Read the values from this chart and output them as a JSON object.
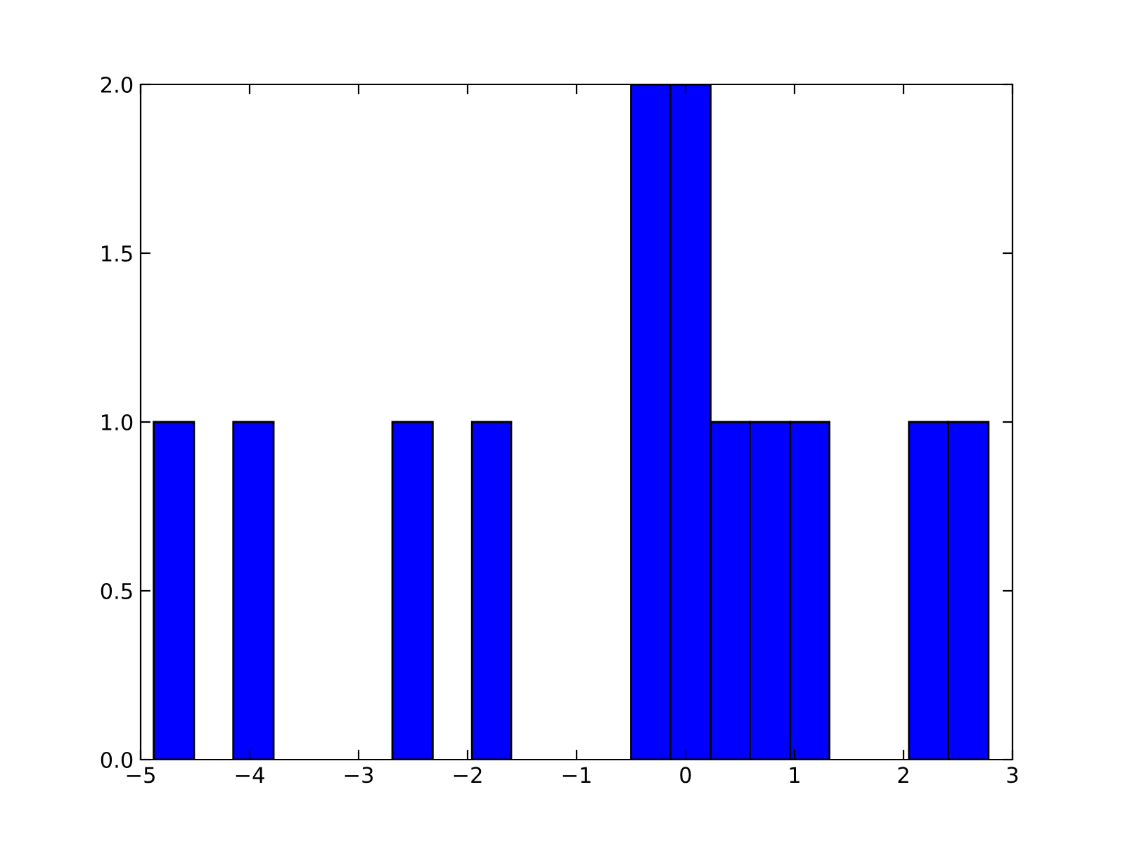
{
  "chart_data": {
    "type": "histogram",
    "bins": [
      -4.88,
      -4.51,
      -4.15,
      -3.78,
      -2.69,
      -2.32,
      -1.96,
      -1.6,
      -0.5,
      -0.14,
      0.23,
      0.59,
      0.96,
      1.32,
      2.05,
      2.41,
      2.78
    ],
    "values": [
      1,
      0,
      1,
      0,
      1,
      0,
      1,
      0,
      2,
      2,
      1,
      1,
      1,
      0,
      1,
      1
    ],
    "color": "#0000ff",
    "xlim": [
      -5,
      3
    ],
    "xticks": [
      {
        "value": -5,
        "label": "−5"
      },
      {
        "value": -4,
        "label": "−4"
      },
      {
        "value": -3,
        "label": "−3"
      },
      {
        "value": -2,
        "label": "−2"
      },
      {
        "value": -1,
        "label": "−1"
      },
      0,
      1,
      2,
      3
    ],
    "ylim": [
      0,
      2
    ],
    "yticks": [
      {
        "value": 0,
        "label": "0.0"
      },
      {
        "value": 0.5,
        "label": "0.5"
      },
      {
        "value": 1,
        "label": "1.0"
      },
      {
        "value": 1.5,
        "label": "1.5"
      },
      {
        "value": 2,
        "label": "2.0"
      }
    ],
    "grid": false
  }
}
